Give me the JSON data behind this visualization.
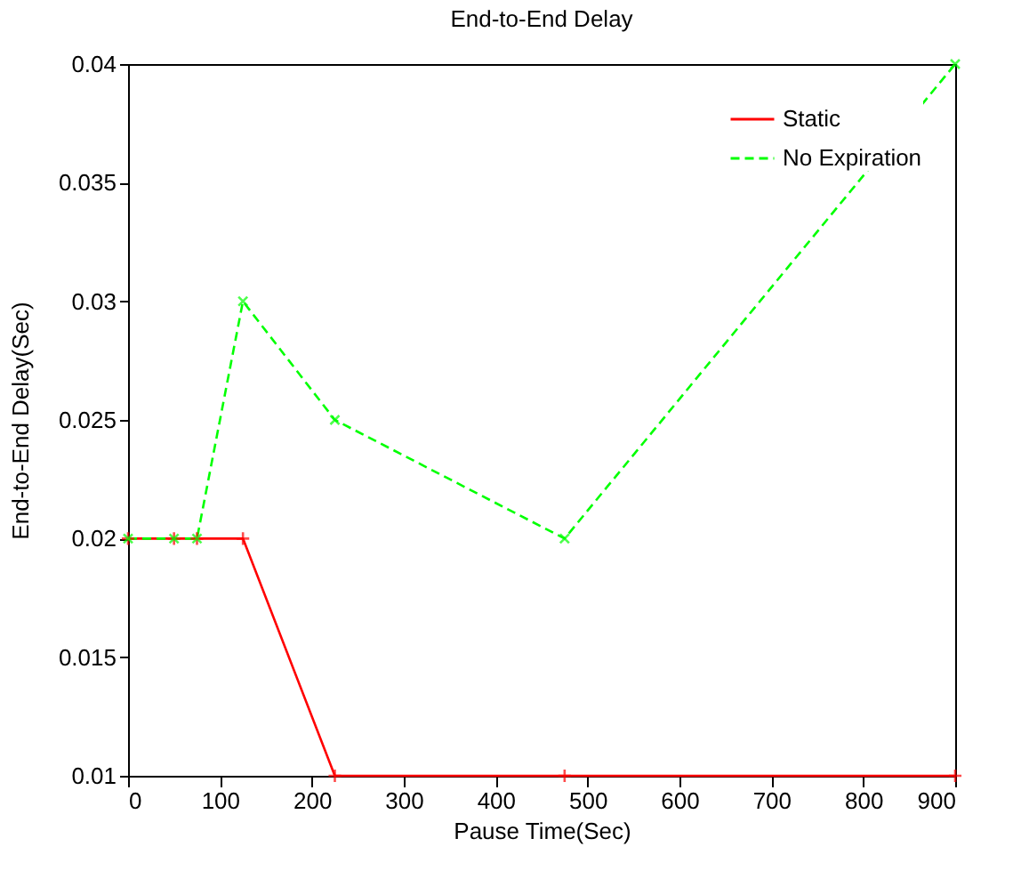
{
  "chart_data": {
    "type": "line",
    "title": "End-to-End Delay",
    "xlabel": "Pause Time(Sec)",
    "ylabel": "End-to-End Delay(Sec)",
    "x": [
      0,
      50,
      75,
      125,
      225,
      475,
      900
    ],
    "series": [
      {
        "name": "Static",
        "color": "#ff0000",
        "marker": "cross",
        "line_style": "solid",
        "values": [
          0.02,
          0.02,
          0.02,
          0.02,
          0.01,
          0.01,
          0.01
        ]
      },
      {
        "name": "No Expiration",
        "color": "#00ff00",
        "marker": "cross",
        "line_style": "dashed",
        "values": [
          0.02,
          0.02,
          0.02,
          0.03,
          0.025,
          0.02,
          0.04
        ]
      }
    ],
    "xlim": [
      0,
      900
    ],
    "xticks": [
      0,
      100,
      200,
      300,
      400,
      500,
      600,
      700,
      800,
      900
    ],
    "ylim": [
      0.01,
      0.04
    ],
    "yticks": [
      0.01,
      0.015,
      0.02,
      0.025,
      0.03,
      0.035,
      0.04
    ],
    "grid": false,
    "legend": "top right"
  }
}
